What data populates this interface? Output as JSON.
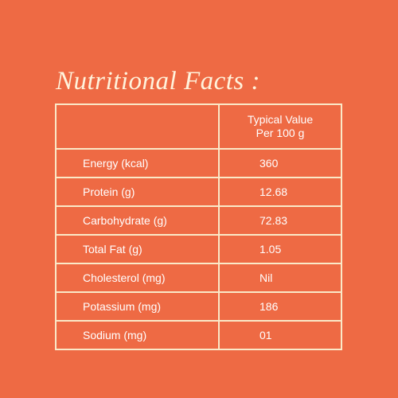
{
  "title": "Nutritional Facts :",
  "table": {
    "header": {
      "line1": "Typical Value",
      "line2": "Per 100 g"
    },
    "rows": [
      {
        "name": "Energy (kcal)",
        "value": "360"
      },
      {
        "name": "Protein (g)",
        "value": "12.68"
      },
      {
        "name": "Carbohydrate (g)",
        "value": "72.83"
      },
      {
        "name": "Total Fat (g)",
        "value": "1.05"
      },
      {
        "name": "Cholesterol (mg)",
        "value": "Nil"
      },
      {
        "name": "Potassium (mg)",
        "value": "186"
      },
      {
        "name": "Sodium (mg)",
        "value": "01"
      }
    ]
  },
  "colors": {
    "background": "#ee6a44",
    "border": "#fae9c8",
    "text": "#ffffff"
  }
}
